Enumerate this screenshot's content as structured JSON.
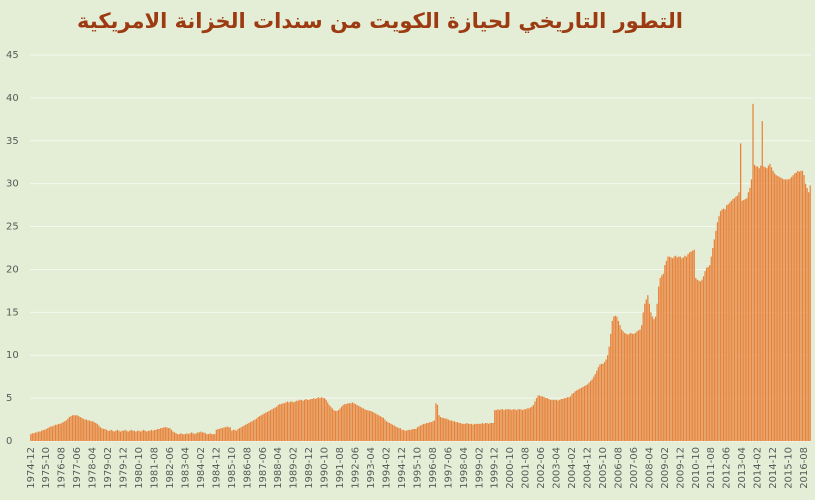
{
  "chart_data": {
    "type": "bar",
    "title": "التطور التاريخي لحيازة الكويت من سندات الخزانة الامريكية",
    "categories": [
      "1974-12",
      null,
      null,
      null,
      null,
      null,
      null,
      null,
      null,
      null,
      "1975-10",
      null,
      null,
      null,
      null,
      null,
      null,
      null,
      null,
      null,
      "1976-08",
      null,
      null,
      null,
      null,
      null,
      null,
      null,
      null,
      null,
      "1977-06",
      null,
      null,
      null,
      null,
      null,
      null,
      null,
      null,
      null,
      "1978-04",
      null,
      null,
      null,
      null,
      null,
      null,
      null,
      null,
      null,
      "1979-02",
      null,
      null,
      null,
      null,
      null,
      null,
      null,
      null,
      null,
      "1979-12",
      null,
      null,
      null,
      null,
      null,
      null,
      null,
      null,
      null,
      "1980-10",
      null,
      null,
      null,
      null,
      null,
      null,
      null,
      null,
      null,
      "1981-08",
      null,
      null,
      null,
      null,
      null,
      null,
      null,
      null,
      null,
      "1982-06",
      null,
      null,
      null,
      null,
      null,
      null,
      null,
      null,
      null,
      "1983-04",
      null,
      null,
      null,
      null,
      null,
      null,
      null,
      null,
      null,
      "1984-02",
      null,
      null,
      null,
      null,
      null,
      null,
      null,
      null,
      null,
      "1984-12",
      null,
      null,
      null,
      null,
      null,
      null,
      null,
      null,
      null,
      "1985-10",
      null,
      null,
      null,
      null,
      null,
      null,
      null,
      null,
      null,
      "1986-08",
      null,
      null,
      null,
      null,
      null,
      null,
      null,
      null,
      null,
      "1987-06",
      null,
      null,
      null,
      null,
      null,
      null,
      null,
      null,
      null,
      "1988-04",
      null,
      null,
      null,
      null,
      null,
      null,
      null,
      null,
      null,
      "1989-02",
      null,
      null,
      null,
      null,
      null,
      null,
      null,
      null,
      null,
      "1989-12",
      null,
      null,
      null,
      null,
      null,
      null,
      null,
      null,
      null,
      "1990-10",
      null,
      null,
      null,
      null,
      null,
      null,
      null,
      null,
      null,
      "1991-08",
      null,
      null,
      null,
      null,
      null,
      null,
      null,
      null,
      null,
      "1992-06",
      null,
      null,
      null,
      null,
      null,
      null,
      null,
      null,
      null,
      "1993-04",
      null,
      null,
      null,
      null,
      null,
      null,
      null,
      null,
      null,
      "1994-02",
      null,
      null,
      null,
      null,
      null,
      null,
      null,
      null,
      null,
      "1994-12",
      null,
      null,
      null,
      null,
      null,
      null,
      null,
      null,
      null,
      "1995-10",
      null,
      null,
      null,
      null,
      null,
      null,
      null,
      null,
      null,
      "1996-08",
      null,
      null,
      null,
      null,
      null,
      null,
      null,
      null,
      null,
      "1997-06",
      null,
      null,
      null,
      null,
      null,
      null,
      null,
      null,
      null,
      "1998-04",
      null,
      null,
      null,
      null,
      null,
      null,
      null,
      null,
      null,
      "1999-02",
      null,
      null,
      null,
      null,
      null,
      null,
      null,
      null,
      null,
      "1999-12",
      null,
      null,
      null,
      null,
      null,
      null,
      null,
      null,
      null,
      "2000-10",
      null,
      null,
      null,
      null,
      null,
      null,
      null,
      null,
      null,
      "2001-08",
      null,
      null,
      null,
      null,
      null,
      null,
      null,
      null,
      null,
      "2002-06",
      null,
      null,
      null,
      null,
      null,
      null,
      null,
      null,
      null,
      "2003-04",
      null,
      null,
      null,
      null,
      null,
      null,
      null,
      null,
      null,
      "2004-02",
      null,
      null,
      null,
      null,
      null,
      null,
      null,
      null,
      null,
      "2004-12",
      null,
      null,
      null,
      null,
      null,
      null,
      null,
      null,
      null,
      "2005-10",
      null,
      null,
      null,
      null,
      null,
      null,
      null,
      null,
      null,
      "2006-08",
      null,
      null,
      null,
      null,
      null,
      null,
      null,
      null,
      null,
      "2007-06",
      null,
      null,
      null,
      null,
      null,
      null,
      null,
      null,
      null,
      "2008-04",
      null,
      null,
      null,
      null,
      null,
      null,
      null,
      null,
      null,
      "2009-02",
      null,
      null,
      null,
      null,
      null,
      null,
      null,
      null,
      null,
      "2009-12",
      null,
      null,
      null,
      null,
      null,
      null,
      null,
      null,
      null,
      "2010-10",
      null,
      null,
      null,
      null,
      null,
      null,
      null,
      null,
      null,
      "2011-08",
      null,
      null,
      null,
      null,
      null,
      null,
      null,
      null,
      null,
      "2012-06",
      null,
      null,
      null,
      null,
      null,
      null,
      null,
      null,
      null,
      "2013-04",
      null,
      null,
      null,
      null,
      null,
      null,
      null,
      null,
      null,
      "2014-02",
      null,
      null,
      null,
      null,
      null,
      null,
      null,
      null,
      null,
      "2014-12",
      null,
      null,
      null,
      null,
      null,
      null,
      null,
      null,
      null,
      "2015-10",
      null,
      null,
      null,
      null,
      null,
      null,
      null,
      null,
      null,
      "2016-08",
      null,
      null,
      null,
      null
    ],
    "values": [
      0.8,
      0.9,
      0.9,
      1.0,
      1.0,
      1.1,
      1.1,
      1.2,
      1.3,
      1.3,
      1.4,
      1.5,
      1.6,
      1.7,
      1.7,
      1.8,
      1.9,
      1.9,
      2.0,
      2.0,
      2.1,
      2.2,
      2.3,
      2.4,
      2.6,
      2.8,
      2.9,
      3.0,
      3.0,
      3.0,
      3.0,
      2.9,
      2.8,
      2.7,
      2.6,
      2.5,
      2.5,
      2.4,
      2.4,
      2.3,
      2.3,
      2.2,
      2.1,
      2.0,
      1.8,
      1.6,
      1.5,
      1.4,
      1.4,
      1.3,
      1.2,
      1.2,
      1.3,
      1.2,
      1.1,
      1.2,
      1.3,
      1.2,
      1.1,
      1.2,
      1.2,
      1.3,
      1.2,
      1.1,
      1.2,
      1.3,
      1.2,
      1.2,
      1.1,
      1.2,
      1.2,
      1.1,
      1.2,
      1.3,
      1.2,
      1.1,
      1.2,
      1.2,
      1.3,
      1.2,
      1.3,
      1.3,
      1.4,
      1.4,
      1.5,
      1.5,
      1.6,
      1.6,
      1.6,
      1.5,
      1.5,
      1.3,
      1.1,
      1.0,
      0.9,
      0.8,
      0.8,
      0.9,
      0.8,
      0.8,
      0.8,
      0.9,
      0.8,
      0.9,
      1.0,
      0.9,
      0.8,
      0.9,
      1.0,
      1.0,
      1.1,
      1.0,
      1.0,
      0.9,
      0.8,
      0.8,
      0.9,
      0.8,
      0.8,
      0.8,
      1.3,
      1.4,
      1.4,
      1.5,
      1.5,
      1.6,
      1.6,
      1.7,
      1.6,
      1.6,
      1.2,
      1.3,
      1.3,
      1.2,
      1.4,
      1.5,
      1.6,
      1.7,
      1.8,
      1.9,
      2.0,
      2.1,
      2.2,
      2.3,
      2.4,
      2.5,
      2.6,
      2.8,
      2.9,
      3.0,
      3.1,
      3.2,
      3.3,
      3.4,
      3.5,
      3.6,
      3.7,
      3.8,
      3.9,
      4.0,
      4.2,
      4.3,
      4.3,
      4.4,
      4.4,
      4.5,
      4.6,
      4.5,
      4.6,
      4.6,
      4.5,
      4.6,
      4.7,
      4.7,
      4.8,
      4.8,
      4.7,
      4.8,
      4.9,
      4.8,
      4.8,
      4.9,
      4.9,
      5.0,
      4.9,
      5.0,
      5.1,
      5.0,
      5.1,
      5.0,
      5.0,
      4.8,
      4.5,
      4.2,
      4.0,
      3.8,
      3.6,
      3.5,
      3.5,
      3.6,
      3.8,
      4.0,
      4.2,
      4.3,
      4.3,
      4.4,
      4.4,
      4.4,
      4.5,
      4.4,
      4.3,
      4.2,
      4.1,
      4.0,
      3.9,
      3.8,
      3.7,
      3.6,
      3.6,
      3.5,
      3.5,
      3.4,
      3.3,
      3.2,
      3.1,
      3.0,
      2.9,
      2.8,
      2.7,
      2.5,
      2.3,
      2.2,
      2.1,
      2.0,
      1.9,
      1.8,
      1.7,
      1.6,
      1.5,
      1.5,
      1.3,
      1.3,
      1.2,
      1.2,
      1.3,
      1.3,
      1.3,
      1.4,
      1.4,
      1.4,
      1.6,
      1.7,
      1.8,
      1.9,
      2.0,
      2.0,
      2.1,
      2.1,
      2.2,
      2.2,
      2.3,
      2.4,
      4.4,
      4.2,
      3.0,
      2.8,
      2.7,
      2.7,
      2.6,
      2.6,
      2.5,
      2.4,
      2.4,
      2.3,
      2.3,
      2.2,
      2.2,
      2.1,
      2.1,
      2.0,
      2.0,
      2.0,
      2.1,
      2.0,
      2.0,
      2.0,
      1.9,
      2.0,
      2.0,
      2.0,
      2.0,
      2.0,
      2.1,
      2.0,
      2.1,
      2.1,
      2.0,
      2.1,
      2.1,
      2.1,
      3.6,
      3.6,
      3.7,
      3.6,
      3.7,
      3.7,
      3.6,
      3.7,
      3.7,
      3.7,
      3.7,
      3.6,
      3.7,
      3.7,
      3.6,
      3.7,
      3.7,
      3.7,
      3.6,
      3.7,
      3.7,
      3.8,
      3.8,
      3.9,
      4.0,
      4.2,
      4.6,
      5.0,
      5.3,
      5.3,
      5.2,
      5.2,
      5.1,
      5.0,
      5.0,
      4.9,
      4.8,
      4.8,
      4.8,
      4.8,
      4.8,
      4.7,
      4.8,
      4.9,
      4.9,
      5.0,
      5.0,
      5.1,
      5.1,
      5.2,
      5.5,
      5.6,
      5.8,
      5.9,
      6.0,
      6.1,
      6.2,
      6.3,
      6.4,
      6.5,
      6.6,
      6.8,
      7.0,
      7.2,
      7.5,
      7.8,
      8.2,
      8.6,
      8.9,
      9.0,
      9.0,
      9.2,
      9.5,
      10.0,
      11.0,
      12.5,
      14.0,
      14.5,
      14.6,
      14.5,
      14.0,
      13.5,
      13.0,
      12.8,
      12.6,
      12.5,
      12.4,
      12.5,
      12.6,
      12.5,
      12.5,
      12.6,
      12.8,
      12.9,
      13.0,
      13.5,
      15.0,
      16.0,
      16.5,
      17.0,
      16.0,
      15.0,
      14.5,
      14.2,
      14.5,
      16.0,
      18.0,
      19.0,
      19.3,
      19.5,
      20.5,
      21.0,
      21.5,
      21.5,
      21.4,
      21.3,
      21.5,
      21.6,
      21.4,
      21.5,
      21.5,
      21.3,
      21.4,
      21.6,
      21.5,
      21.8,
      22.0,
      22.1,
      22.2,
      22.3,
      19.0,
      18.8,
      18.7,
      18.6,
      18.8,
      19.2,
      19.8,
      20.2,
      20.3,
      20.5,
      21.5,
      22.5,
      23.5,
      24.5,
      25.5,
      26.2,
      26.8,
      27.0,
      27.1,
      27.0,
      27.5,
      27.6,
      27.8,
      28.0,
      28.2,
      28.3,
      28.5,
      28.6,
      29.0,
      34.7,
      28.0,
      28.1,
      28.2,
      28.3,
      29.0,
      29.5,
      30.5,
      39.3,
      32.2,
      32.0,
      32.0,
      31.8,
      32.1,
      37.3,
      32.0,
      31.9,
      31.8,
      32.1,
      32.3,
      31.9,
      31.5,
      31.2,
      31.0,
      30.9,
      30.8,
      30.7,
      30.6,
      30.5,
      30.5,
      30.5,
      30.5,
      30.6,
      30.8,
      31.0,
      31.2,
      31.3,
      31.5,
      31.4,
      31.5,
      31.5,
      31.0,
      30.0,
      29.5,
      29.0,
      29.8
    ],
    "color": "#e8823a",
    "ylim": [
      0,
      45
    ],
    "yticks": [
      0,
      5,
      10,
      15,
      20,
      25,
      30,
      35,
      40,
      45
    ],
    "grid": true
  }
}
